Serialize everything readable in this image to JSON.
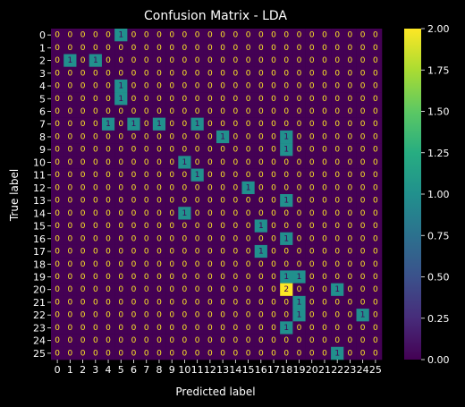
{
  "chart_data": {
    "type": "heatmap",
    "title": "Confusion Matrix - LDA",
    "xlabel": "Predicted label",
    "ylabel": "True label",
    "x_labels": [
      "0",
      "1",
      "2",
      "3",
      "4",
      "5",
      "6",
      "7",
      "8",
      "9",
      "10",
      "11",
      "12",
      "13",
      "14",
      "15",
      "16",
      "17",
      "18",
      "19",
      "20",
      "21",
      "22",
      "23",
      "24",
      "25"
    ],
    "y_labels": [
      "0",
      "1",
      "2",
      "3",
      "4",
      "5",
      "6",
      "7",
      "8",
      "9",
      "10",
      "11",
      "12",
      "13",
      "14",
      "15",
      "16",
      "17",
      "18",
      "19",
      "20",
      "21",
      "22",
      "23",
      "24",
      "25"
    ],
    "matrix": [
      [
        0,
        0,
        0,
        0,
        0,
        1,
        0,
        0,
        0,
        0,
        0,
        0,
        0,
        0,
        0,
        0,
        0,
        0,
        0,
        0,
        0,
        0,
        0,
        0,
        0,
        0
      ],
      [
        0,
        0,
        0,
        0,
        0,
        0,
        0,
        0,
        0,
        0,
        0,
        0,
        0,
        0,
        0,
        0,
        0,
        0,
        0,
        0,
        0,
        0,
        0,
        0,
        0,
        0
      ],
      [
        0,
        1,
        0,
        1,
        0,
        0,
        0,
        0,
        0,
        0,
        0,
        0,
        0,
        0,
        0,
        0,
        0,
        0,
        0,
        0,
        0,
        0,
        0,
        0,
        0,
        0
      ],
      [
        0,
        0,
        0,
        0,
        0,
        0,
        0,
        0,
        0,
        0,
        0,
        0,
        0,
        0,
        0,
        0,
        0,
        0,
        0,
        0,
        0,
        0,
        0,
        0,
        0,
        0
      ],
      [
        0,
        0,
        0,
        0,
        0,
        1,
        0,
        0,
        0,
        0,
        0,
        0,
        0,
        0,
        0,
        0,
        0,
        0,
        0,
        0,
        0,
        0,
        0,
        0,
        0,
        0
      ],
      [
        0,
        0,
        0,
        0,
        0,
        1,
        0,
        0,
        0,
        0,
        0,
        0,
        0,
        0,
        0,
        0,
        0,
        0,
        0,
        0,
        0,
        0,
        0,
        0,
        0,
        0
      ],
      [
        0,
        0,
        0,
        0,
        0,
        0,
        0,
        0,
        0,
        0,
        0,
        0,
        0,
        0,
        0,
        0,
        0,
        0,
        0,
        0,
        0,
        0,
        0,
        0,
        0,
        0
      ],
      [
        0,
        0,
        0,
        0,
        1,
        0,
        1,
        0,
        1,
        0,
        0,
        1,
        0,
        0,
        0,
        0,
        0,
        0,
        0,
        0,
        0,
        0,
        0,
        0,
        0,
        0
      ],
      [
        0,
        0,
        0,
        0,
        0,
        0,
        0,
        0,
        0,
        0,
        0,
        0,
        0,
        1,
        0,
        0,
        0,
        0,
        1,
        0,
        0,
        0,
        0,
        0,
        0,
        0
      ],
      [
        0,
        0,
        0,
        0,
        0,
        0,
        0,
        0,
        0,
        0,
        0,
        0,
        0,
        0,
        0,
        0,
        0,
        0,
        1,
        0,
        0,
        0,
        0,
        0,
        0,
        0
      ],
      [
        0,
        0,
        0,
        0,
        0,
        0,
        0,
        0,
        0,
        0,
        1,
        0,
        0,
        0,
        0,
        0,
        0,
        0,
        0,
        0,
        0,
        0,
        0,
        0,
        0,
        0
      ],
      [
        0,
        0,
        0,
        0,
        0,
        0,
        0,
        0,
        0,
        0,
        0,
        1,
        0,
        0,
        0,
        0,
        0,
        0,
        0,
        0,
        0,
        0,
        0,
        0,
        0,
        0
      ],
      [
        0,
        0,
        0,
        0,
        0,
        0,
        0,
        0,
        0,
        0,
        0,
        0,
        0,
        0,
        0,
        1,
        0,
        0,
        0,
        0,
        0,
        0,
        0,
        0,
        0,
        0
      ],
      [
        0,
        0,
        0,
        0,
        0,
        0,
        0,
        0,
        0,
        0,
        0,
        0,
        0,
        0,
        0,
        0,
        0,
        0,
        1,
        0,
        0,
        0,
        0,
        0,
        0,
        0
      ],
      [
        0,
        0,
        0,
        0,
        0,
        0,
        0,
        0,
        0,
        0,
        1,
        0,
        0,
        0,
        0,
        0,
        0,
        0,
        0,
        0,
        0,
        0,
        0,
        0,
        0,
        0
      ],
      [
        0,
        0,
        0,
        0,
        0,
        0,
        0,
        0,
        0,
        0,
        0,
        0,
        0,
        0,
        0,
        0,
        1,
        0,
        0,
        0,
        0,
        0,
        0,
        0,
        0,
        0
      ],
      [
        0,
        0,
        0,
        0,
        0,
        0,
        0,
        0,
        0,
        0,
        0,
        0,
        0,
        0,
        0,
        0,
        0,
        0,
        1,
        0,
        0,
        0,
        0,
        0,
        0,
        0
      ],
      [
        0,
        0,
        0,
        0,
        0,
        0,
        0,
        0,
        0,
        0,
        0,
        0,
        0,
        0,
        0,
        0,
        1,
        0,
        0,
        0,
        0,
        0,
        0,
        0,
        0,
        0
      ],
      [
        0,
        0,
        0,
        0,
        0,
        0,
        0,
        0,
        0,
        0,
        0,
        0,
        0,
        0,
        0,
        0,
        0,
        0,
        0,
        0,
        0,
        0,
        0,
        0,
        0,
        0
      ],
      [
        0,
        0,
        0,
        0,
        0,
        0,
        0,
        0,
        0,
        0,
        0,
        0,
        0,
        0,
        0,
        0,
        0,
        0,
        1,
        1,
        0,
        0,
        0,
        0,
        0,
        0
      ],
      [
        0,
        0,
        0,
        0,
        0,
        0,
        0,
        0,
        0,
        0,
        0,
        0,
        0,
        0,
        0,
        0,
        0,
        0,
        2,
        0,
        0,
        0,
        1,
        0,
        0,
        0
      ],
      [
        0,
        0,
        0,
        0,
        0,
        0,
        0,
        0,
        0,
        0,
        0,
        0,
        0,
        0,
        0,
        0,
        0,
        0,
        0,
        1,
        0,
        0,
        0,
        0,
        0,
        0
      ],
      [
        0,
        0,
        0,
        0,
        0,
        0,
        0,
        0,
        0,
        0,
        0,
        0,
        0,
        0,
        0,
        0,
        0,
        0,
        0,
        1,
        0,
        0,
        0,
        0,
        1,
        0
      ],
      [
        0,
        0,
        0,
        0,
        0,
        0,
        0,
        0,
        0,
        0,
        0,
        0,
        0,
        0,
        0,
        0,
        0,
        0,
        1,
        0,
        0,
        0,
        0,
        0,
        0,
        0
      ],
      [
        0,
        0,
        0,
        0,
        0,
        0,
        0,
        0,
        0,
        0,
        0,
        0,
        0,
        0,
        0,
        0,
        0,
        0,
        0,
        0,
        0,
        0,
        0,
        0,
        0,
        0
      ],
      [
        0,
        0,
        0,
        0,
        0,
        0,
        0,
        0,
        0,
        0,
        0,
        0,
        0,
        0,
        0,
        0,
        0,
        0,
        0,
        0,
        0,
        0,
        1,
        0,
        0,
        0
      ]
    ],
    "colorscale": "viridis",
    "colors": {
      "low": "#440154",
      "mid": "#21918c",
      "high": "#fde725",
      "text_dark": "#fde725",
      "text_light": "#440154"
    },
    "colorbar": {
      "min": 0,
      "max": 2,
      "ticks": [
        "0.00",
        "0.25",
        "0.50",
        "0.75",
        "1.00",
        "1.25",
        "1.50",
        "1.75",
        "2.00"
      ]
    },
    "grid": false
  }
}
